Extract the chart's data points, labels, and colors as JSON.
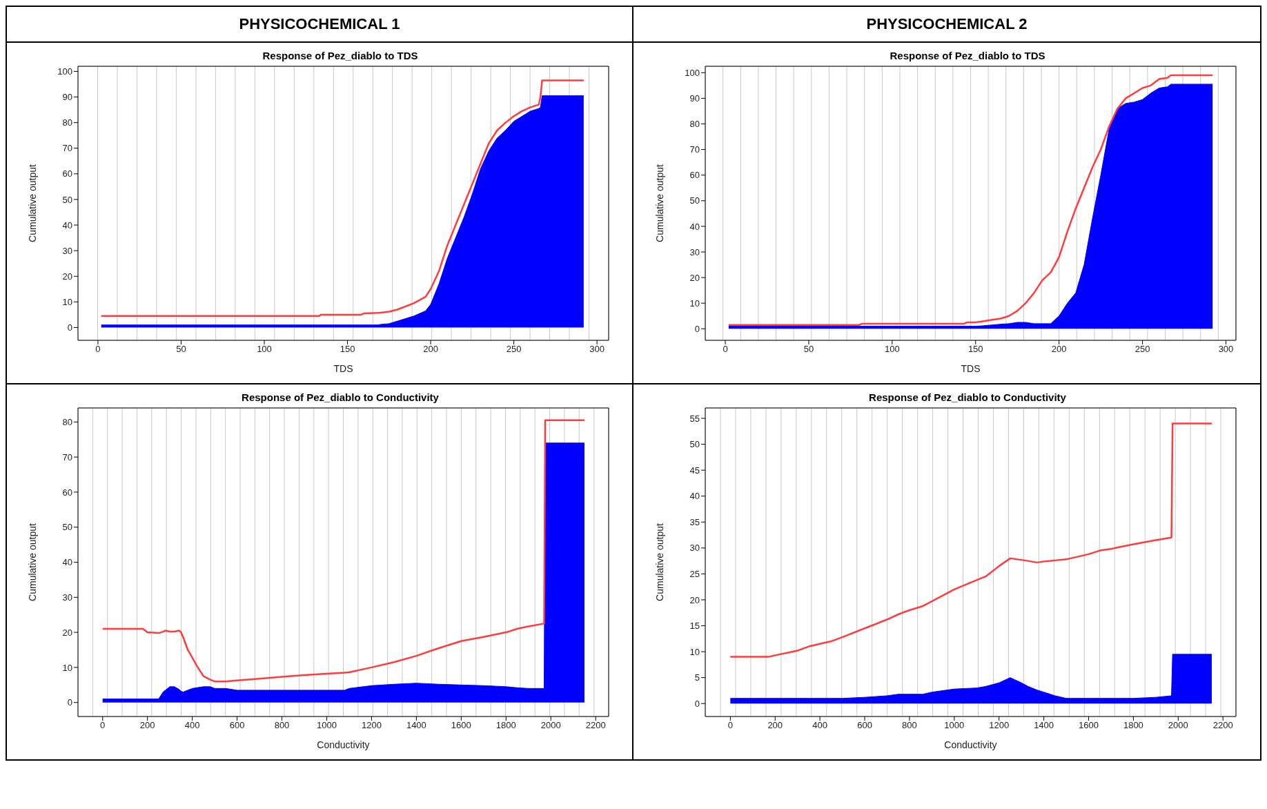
{
  "chart_data": [
    {
      "type": "line",
      "subtitle": "PHYSICOCHEMICAL 1",
      "title": "Response of Pez_diablo to TDS",
      "xlabel": "TDS",
      "ylabel": "Cumulative output",
      "xlim": [
        -12,
        307
      ],
      "xticks": [
        0,
        50,
        100,
        150,
        200,
        250,
        300
      ],
      "ylim": [
        -5,
        102
      ],
      "yticks": [
        0,
        10,
        20,
        30,
        40,
        50,
        60,
        70,
        80,
        90,
        100
      ],
      "grid": true,
      "x": [
        2,
        133,
        134,
        158,
        160,
        168,
        170,
        175,
        180,
        190,
        197,
        200,
        205,
        210,
        215,
        220,
        225,
        230,
        235,
        240,
        245,
        250,
        255,
        260,
        265,
        266,
        267,
        292
      ],
      "series": [
        {
          "type": "area",
          "color": "#0000ff",
          "values": [
            1,
            1,
            1,
            1,
            1,
            1,
            1.2,
            1.5,
            2.5,
            4.5,
            6.5,
            9,
            17,
            27,
            35,
            43,
            52,
            62,
            69,
            74,
            77,
            80.5,
            82.5,
            84.5,
            85.5,
            86,
            90.5,
            90.5
          ]
        },
        {
          "color": "#ff3b3b",
          "values": [
            4.5,
            4.5,
            5,
            5,
            5.5,
            5.7,
            5.8,
            6.2,
            7,
            9.5,
            12,
            15,
            22,
            32,
            40,
            48,
            56,
            64,
            72,
            77,
            80,
            82.5,
            84.5,
            86,
            87,
            90,
            96.5,
            96.5
          ]
        }
      ]
    },
    {
      "type": "line",
      "subtitle": "PHYSICOCHEMICAL 2",
      "title": "Response of Pez_diablo to TDS",
      "xlabel": "TDS",
      "ylabel": "Cumulative output",
      "xlim": [
        -12,
        306
      ],
      "xticks": [
        0,
        50,
        100,
        150,
        200,
        250,
        300
      ],
      "ylim": [
        -4.5,
        102.5
      ],
      "yticks": [
        0,
        10,
        20,
        30,
        40,
        50,
        60,
        70,
        80,
        90,
        100
      ],
      "grid": true,
      "x": [
        2,
        80,
        82,
        143,
        145,
        150,
        155,
        160,
        165,
        170,
        175,
        180,
        185,
        190,
        195,
        200,
        205,
        210,
        215,
        220,
        225,
        230,
        235,
        240,
        245,
        250,
        255,
        260,
        265,
        267,
        292
      ],
      "series": [
        {
          "type": "area",
          "color": "#0000ff",
          "values": [
            1,
            1,
            1,
            1,
            1,
            1,
            1.2,
            1.5,
            1.8,
            2,
            2.5,
            2.5,
            2,
            2,
            2,
            5,
            10,
            14,
            25,
            43,
            60,
            78,
            86,
            88,
            88.5,
            89.5,
            92,
            94,
            94.5,
            95.5,
            95.5
          ]
        },
        {
          "color": "#ff3b3b",
          "values": [
            1.5,
            1.5,
            2,
            2,
            2.5,
            2.5,
            3,
            3.5,
            4,
            5,
            7,
            10,
            14,
            19,
            22,
            28,
            38,
            47,
            55,
            63,
            70,
            79,
            86,
            90,
            92,
            94,
            95,
            97.5,
            98,
            99,
            99
          ]
        }
      ]
    },
    {
      "type": "line",
      "title": "Response of Pez_diablo to Conductivity",
      "xlabel": "Conductivity",
      "ylabel": "Cumulative output",
      "xlim": [
        -110,
        2258
      ],
      "xticks": [
        0,
        200,
        400,
        600,
        800,
        1000,
        1200,
        1400,
        1600,
        1800,
        2000,
        2200
      ],
      "ylim": [
        -4,
        84
      ],
      "yticks": [
        0,
        10,
        20,
        30,
        40,
        50,
        60,
        70,
        80
      ],
      "grid": true,
      "x": [
        0,
        180,
        200,
        250,
        270,
        280,
        300,
        320,
        340,
        350,
        360,
        380,
        400,
        420,
        450,
        480,
        500,
        550,
        600,
        700,
        800,
        900,
        1000,
        1080,
        1100,
        1200,
        1300,
        1400,
        1500,
        1600,
        1700,
        1800,
        1850,
        1900,
        1970,
        1975,
        2150
      ],
      "series": [
        {
          "type": "area",
          "color": "#0000ff",
          "values": [
            1,
            1,
            1,
            1,
            3,
            3.5,
            4.5,
            4.5,
            3.8,
            3.2,
            3,
            3.5,
            4,
            4.2,
            4.5,
            4.5,
            4,
            4,
            3.5,
            3.5,
            3.5,
            3.5,
            3.5,
            3.5,
            4,
            4.8,
            5.2,
            5.5,
            5.2,
            5,
            4.8,
            4.5,
            4.2,
            4,
            4,
            74,
            74
          ]
        },
        {
          "color": "#ff3b3b",
          "values": [
            21,
            21,
            20,
            19.8,
            20.2,
            20.5,
            20.2,
            20.2,
            20.5,
            20,
            18.5,
            15,
            12.8,
            10.5,
            7.5,
            6.5,
            6,
            6,
            6.3,
            6.8,
            7.3,
            7.8,
            8.2,
            8.5,
            8.6,
            10,
            11.5,
            13.3,
            15.5,
            17.5,
            18.7,
            20,
            21,
            21.7,
            22.5,
            80.5,
            80.5
          ]
        }
      ]
    },
    {
      "type": "line",
      "title": "Response of Pez_diablo to Conductivity",
      "xlabel": "Conductivity",
      "ylabel": "Cumulative output",
      "xlim": [
        -112,
        2258
      ],
      "xticks": [
        0,
        200,
        400,
        600,
        800,
        1000,
        1200,
        1400,
        1600,
        1800,
        2000,
        2200
      ],
      "ylim": [
        -2.5,
        57
      ],
      "yticks": [
        0,
        5,
        10,
        15,
        20,
        25,
        30,
        35,
        40,
        45,
        50,
        55
      ],
      "grid": true,
      "x": [
        0,
        170,
        200,
        280,
        300,
        350,
        400,
        450,
        500,
        600,
        700,
        750,
        800,
        860,
        900,
        1000,
        1100,
        1140,
        1200,
        1250,
        1300,
        1330,
        1370,
        1400,
        1450,
        1500,
        1520,
        1600,
        1650,
        1700,
        1720,
        1800,
        1900,
        1970,
        1975,
        2150
      ],
      "series": [
        {
          "type": "area",
          "color": "#0000ff",
          "values": [
            1,
            1,
            1,
            1,
            1,
            1,
            1,
            1,
            1,
            1.2,
            1.5,
            1.8,
            1.8,
            1.8,
            2.2,
            2.8,
            3,
            3.3,
            4,
            5,
            4,
            3.3,
            2.6,
            2.2,
            1.5,
            1,
            1,
            1,
            1,
            1,
            1,
            1,
            1.2,
            1.5,
            9.5,
            9.5
          ]
        },
        {
          "color": "#ff3b3b",
          "values": [
            9,
            9,
            9.3,
            10,
            10.2,
            11,
            11.5,
            12,
            12.8,
            14.5,
            16.2,
            17.2,
            18,
            18.8,
            19.7,
            22,
            23.8,
            24.5,
            26.5,
            28,
            27.7,
            27.5,
            27.2,
            27.4,
            27.6,
            27.8,
            28,
            28.8,
            29.5,
            29.8,
            30,
            30.7,
            31.5,
            32,
            54,
            54
          ]
        }
      ]
    }
  ]
}
